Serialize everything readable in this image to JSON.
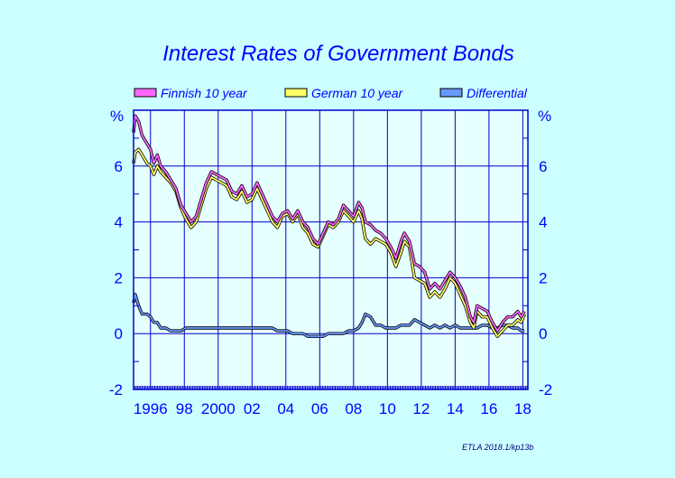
{
  "chart_data": {
    "type": "line",
    "title": "Interest Rates of Government Bonds",
    "y_unit_left": "%",
    "y_unit_right": "%",
    "ylim": [
      -2,
      8
    ],
    "y_ticks": [
      -2,
      0,
      2,
      4,
      6
    ],
    "xlim": [
      1995.0,
      2018.3
    ],
    "x_tick_labels": [
      {
        "x": 1996,
        "label": "1996"
      },
      {
        "x": 1998,
        "label": "98"
      },
      {
        "x": 2000,
        "label": "2000"
      },
      {
        "x": 2002,
        "label": "02"
      },
      {
        "x": 2004,
        "label": "04"
      },
      {
        "x": 2006,
        "label": "06"
      },
      {
        "x": 2008,
        "label": "08"
      },
      {
        "x": 2010,
        "label": "10"
      },
      {
        "x": 2012,
        "label": "12"
      },
      {
        "x": 2014,
        "label": "14"
      },
      {
        "x": 2016,
        "label": "16"
      },
      {
        "x": 2018,
        "label": "18"
      }
    ],
    "grid": true,
    "legend_position": "top",
    "series": [
      {
        "name": "Finnish 10 year",
        "color": "#ff66ff",
        "points": [
          [
            1995.0,
            7.2
          ],
          [
            1995.1,
            7.8
          ],
          [
            1995.3,
            7.6
          ],
          [
            1995.5,
            7.1
          ],
          [
            1995.8,
            6.8
          ],
          [
            1996.0,
            6.6
          ],
          [
            1996.2,
            6.1
          ],
          [
            1996.4,
            6.4
          ],
          [
            1996.6,
            6.0
          ],
          [
            1996.9,
            5.8
          ],
          [
            1997.2,
            5.5
          ],
          [
            1997.5,
            5.2
          ],
          [
            1997.8,
            4.6
          ],
          [
            1998.1,
            4.3
          ],
          [
            1998.4,
            4.0
          ],
          [
            1998.7,
            4.2
          ],
          [
            1999.0,
            4.8
          ],
          [
            1999.3,
            5.4
          ],
          [
            1999.6,
            5.8
          ],
          [
            1999.9,
            5.7
          ],
          [
            2000.2,
            5.6
          ],
          [
            2000.5,
            5.5
          ],
          [
            2000.8,
            5.1
          ],
          [
            2001.1,
            5.0
          ],
          [
            2001.4,
            5.3
          ],
          [
            2001.7,
            4.9
          ],
          [
            2002.0,
            5.0
          ],
          [
            2002.3,
            5.4
          ],
          [
            2002.6,
            5.0
          ],
          [
            2002.9,
            4.6
          ],
          [
            2003.2,
            4.2
          ],
          [
            2003.5,
            4.0
          ],
          [
            2003.8,
            4.3
          ],
          [
            2004.1,
            4.4
          ],
          [
            2004.4,
            4.1
          ],
          [
            2004.7,
            4.4
          ],
          [
            2005.0,
            4.0
          ],
          [
            2005.3,
            3.8
          ],
          [
            2005.6,
            3.4
          ],
          [
            2005.9,
            3.2
          ],
          [
            2006.2,
            3.6
          ],
          [
            2006.5,
            4.0
          ],
          [
            2006.8,
            3.9
          ],
          [
            2007.1,
            4.1
          ],
          [
            2007.4,
            4.6
          ],
          [
            2007.7,
            4.4
          ],
          [
            2008.0,
            4.2
          ],
          [
            2008.3,
            4.7
          ],
          [
            2008.5,
            4.5
          ],
          [
            2008.7,
            4.0
          ],
          [
            2009.0,
            3.9
          ],
          [
            2009.3,
            3.7
          ],
          [
            2009.6,
            3.6
          ],
          [
            2009.9,
            3.4
          ],
          [
            2010.2,
            3.1
          ],
          [
            2010.5,
            2.7
          ],
          [
            2010.8,
            3.3
          ],
          [
            2011.0,
            3.6
          ],
          [
            2011.3,
            3.3
          ],
          [
            2011.6,
            2.5
          ],
          [
            2011.9,
            2.4
          ],
          [
            2012.2,
            2.2
          ],
          [
            2012.5,
            1.6
          ],
          [
            2012.8,
            1.8
          ],
          [
            2013.1,
            1.6
          ],
          [
            2013.4,
            1.9
          ],
          [
            2013.7,
            2.2
          ],
          [
            2014.0,
            2.0
          ],
          [
            2014.3,
            1.7
          ],
          [
            2014.6,
            1.3
          ],
          [
            2014.9,
            0.6
          ],
          [
            2015.1,
            0.4
          ],
          [
            2015.3,
            1.0
          ],
          [
            2015.6,
            0.9
          ],
          [
            2015.9,
            0.8
          ],
          [
            2016.2,
            0.4
          ],
          [
            2016.5,
            0.1
          ],
          [
            2016.8,
            0.4
          ],
          [
            2017.1,
            0.6
          ],
          [
            2017.4,
            0.6
          ],
          [
            2017.7,
            0.8
          ],
          [
            2017.9,
            0.6
          ],
          [
            2018.1,
            0.8
          ]
        ]
      },
      {
        "name": "German 10 year",
        "color": "#ffff66",
        "points": [
          [
            1995.0,
            6.1
          ],
          [
            1995.1,
            6.5
          ],
          [
            1995.3,
            6.6
          ],
          [
            1995.5,
            6.4
          ],
          [
            1995.8,
            6.1
          ],
          [
            1996.0,
            6.0
          ],
          [
            1996.2,
            5.7
          ],
          [
            1996.4,
            6.0
          ],
          [
            1996.6,
            5.8
          ],
          [
            1996.9,
            5.6
          ],
          [
            1997.2,
            5.4
          ],
          [
            1997.5,
            5.1
          ],
          [
            1997.8,
            4.5
          ],
          [
            1998.1,
            4.1
          ],
          [
            1998.4,
            3.8
          ],
          [
            1998.7,
            4.0
          ],
          [
            1999.0,
            4.6
          ],
          [
            1999.3,
            5.2
          ],
          [
            1999.6,
            5.6
          ],
          [
            1999.9,
            5.5
          ],
          [
            2000.2,
            5.4
          ],
          [
            2000.5,
            5.3
          ],
          [
            2000.8,
            4.9
          ],
          [
            2001.1,
            4.8
          ],
          [
            2001.4,
            5.1
          ],
          [
            2001.7,
            4.7
          ],
          [
            2002.0,
            4.8
          ],
          [
            2002.3,
            5.2
          ],
          [
            2002.6,
            4.8
          ],
          [
            2002.9,
            4.4
          ],
          [
            2003.2,
            4.0
          ],
          [
            2003.5,
            3.8
          ],
          [
            2003.8,
            4.2
          ],
          [
            2004.1,
            4.3
          ],
          [
            2004.4,
            4.0
          ],
          [
            2004.7,
            4.3
          ],
          [
            2005.0,
            3.8
          ],
          [
            2005.3,
            3.6
          ],
          [
            2005.6,
            3.2
          ],
          [
            2005.9,
            3.1
          ],
          [
            2006.2,
            3.5
          ],
          [
            2006.5,
            3.9
          ],
          [
            2006.8,
            3.8
          ],
          [
            2007.1,
            4.0
          ],
          [
            2007.4,
            4.4
          ],
          [
            2007.7,
            4.2
          ],
          [
            2008.0,
            4.0
          ],
          [
            2008.3,
            4.4
          ],
          [
            2008.5,
            4.1
          ],
          [
            2008.7,
            3.4
          ],
          [
            2009.0,
            3.2
          ],
          [
            2009.3,
            3.4
          ],
          [
            2009.6,
            3.3
          ],
          [
            2009.9,
            3.2
          ],
          [
            2010.2,
            2.9
          ],
          [
            2010.5,
            2.4
          ],
          [
            2010.8,
            2.9
          ],
          [
            2011.0,
            3.3
          ],
          [
            2011.3,
            3.1
          ],
          [
            2011.6,
            2.0
          ],
          [
            2011.9,
            1.9
          ],
          [
            2012.2,
            1.8
          ],
          [
            2012.5,
            1.3
          ],
          [
            2012.8,
            1.5
          ],
          [
            2013.1,
            1.3
          ],
          [
            2013.4,
            1.6
          ],
          [
            2013.7,
            2.0
          ],
          [
            2014.0,
            1.8
          ],
          [
            2014.3,
            1.4
          ],
          [
            2014.6,
            1.0
          ],
          [
            2014.9,
            0.4
          ],
          [
            2015.1,
            0.2
          ],
          [
            2015.3,
            0.8
          ],
          [
            2015.6,
            0.6
          ],
          [
            2015.9,
            0.6
          ],
          [
            2016.2,
            0.2
          ],
          [
            2016.5,
            -0.1
          ],
          [
            2016.8,
            0.1
          ],
          [
            2017.1,
            0.3
          ],
          [
            2017.4,
            0.3
          ],
          [
            2017.7,
            0.5
          ],
          [
            2017.9,
            0.4
          ],
          [
            2018.1,
            0.7
          ]
        ]
      },
      {
        "name": "Differential",
        "color": "#6699ff",
        "points": [
          [
            1995.0,
            1.1
          ],
          [
            1995.1,
            1.4
          ],
          [
            1995.3,
            1.0
          ],
          [
            1995.5,
            0.7
          ],
          [
            1995.8,
            0.7
          ],
          [
            1996.0,
            0.6
          ],
          [
            1996.2,
            0.4
          ],
          [
            1996.4,
            0.4
          ],
          [
            1996.6,
            0.2
          ],
          [
            1996.9,
            0.2
          ],
          [
            1997.2,
            0.1
          ],
          [
            1997.5,
            0.1
          ],
          [
            1997.8,
            0.1
          ],
          [
            1998.1,
            0.2
          ],
          [
            1998.4,
            0.2
          ],
          [
            1998.7,
            0.2
          ],
          [
            1999.0,
            0.2
          ],
          [
            1999.3,
            0.2
          ],
          [
            1999.6,
            0.2
          ],
          [
            1999.9,
            0.2
          ],
          [
            2000.2,
            0.2
          ],
          [
            2000.5,
            0.2
          ],
          [
            2000.8,
            0.2
          ],
          [
            2001.1,
            0.2
          ],
          [
            2001.4,
            0.2
          ],
          [
            2001.7,
            0.2
          ],
          [
            2002.0,
            0.2
          ],
          [
            2002.3,
            0.2
          ],
          [
            2002.6,
            0.2
          ],
          [
            2002.9,
            0.2
          ],
          [
            2003.2,
            0.2
          ],
          [
            2003.5,
            0.1
          ],
          [
            2003.8,
            0.1
          ],
          [
            2004.1,
            0.1
          ],
          [
            2004.4,
            0.0
          ],
          [
            2004.7,
            0.0
          ],
          [
            2005.0,
            0.0
          ],
          [
            2005.3,
            -0.1
          ],
          [
            2005.6,
            -0.1
          ],
          [
            2005.9,
            -0.1
          ],
          [
            2006.2,
            -0.1
          ],
          [
            2006.5,
            0.0
          ],
          [
            2006.8,
            0.0
          ],
          [
            2007.1,
            0.0
          ],
          [
            2007.4,
            0.0
          ],
          [
            2007.7,
            0.1
          ],
          [
            2008.0,
            0.1
          ],
          [
            2008.3,
            0.2
          ],
          [
            2008.5,
            0.4
          ],
          [
            2008.7,
            0.7
          ],
          [
            2009.0,
            0.6
          ],
          [
            2009.3,
            0.3
          ],
          [
            2009.6,
            0.3
          ],
          [
            2009.9,
            0.2
          ],
          [
            2010.2,
            0.2
          ],
          [
            2010.5,
            0.2
          ],
          [
            2010.8,
            0.3
          ],
          [
            2011.0,
            0.3
          ],
          [
            2011.3,
            0.3
          ],
          [
            2011.6,
            0.5
          ],
          [
            2011.9,
            0.4
          ],
          [
            2012.2,
            0.3
          ],
          [
            2012.5,
            0.2
          ],
          [
            2012.8,
            0.3
          ],
          [
            2013.1,
            0.2
          ],
          [
            2013.4,
            0.3
          ],
          [
            2013.7,
            0.2
          ],
          [
            2014.0,
            0.3
          ],
          [
            2014.3,
            0.2
          ],
          [
            2014.6,
            0.2
          ],
          [
            2014.9,
            0.2
          ],
          [
            2015.1,
            0.2
          ],
          [
            2015.3,
            0.2
          ],
          [
            2015.6,
            0.3
          ],
          [
            2015.9,
            0.3
          ],
          [
            2016.2,
            0.2
          ],
          [
            2016.5,
            0.2
          ],
          [
            2016.8,
            0.3
          ],
          [
            2017.1,
            0.3
          ],
          [
            2017.4,
            0.2
          ],
          [
            2017.7,
            0.2
          ],
          [
            2017.9,
            0.1
          ],
          [
            2018.1,
            0.1
          ]
        ]
      }
    ]
  },
  "credit": "ETLA 2018.1/kp13b",
  "colors": {
    "background": "#ccffff",
    "plot_background": "#e6ffff",
    "grid": "#0000cc",
    "text": "#0000ff",
    "line_outline": "#000000"
  }
}
